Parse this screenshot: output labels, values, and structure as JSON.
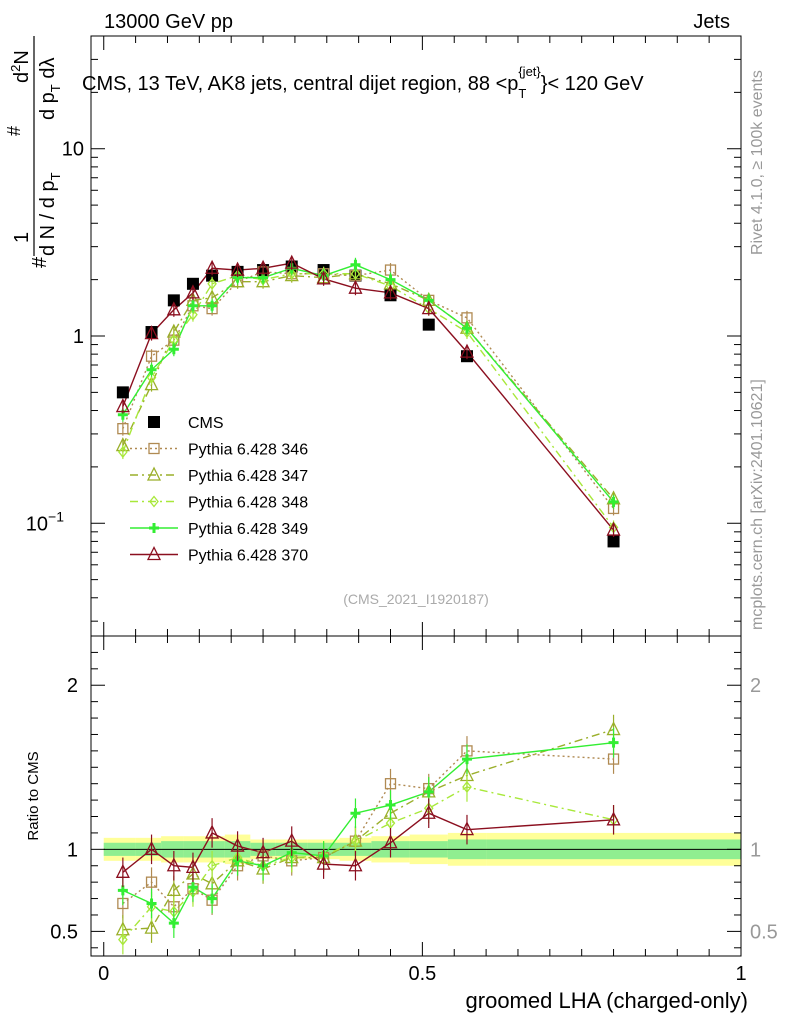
{
  "header": {
    "left": "13000 GeV pp",
    "right": "Jets"
  },
  "side_texts": {
    "rivet": "Rivet 4.1.0, ≥ 100k events",
    "site": "mcplots.cern.ch [arXiv:2401.10621]"
  },
  "colors": {
    "CMS": "#000000",
    "p346": "#b08a52",
    "p347": "#9aaf2a",
    "p348": "#a8e83a",
    "p349": "#33ee33",
    "p370": "#8b0f1f",
    "band_inner": "#90ee90",
    "band_outer": "#ffff99"
  },
  "chart_data": [
    {
      "type": "line",
      "panel": "main",
      "title": "CMS, 13 TeV, AK8 jets, central dijet region, 88 <p_T^{jet}< 120 GeV",
      "title_parts": {
        "prefix": "CMS, 13 TeV, AK8 jets, central dijet region, 88 <p",
        "sub": "T",
        "sup": "{jet}",
        "suffix": "}< 120 GeV"
      },
      "ylabel": "1/(dN/dp_T) d2N/(dp_T dλ)",
      "ylabel_parts": {
        "hash": "#",
        "one": "1",
        "denom": "d N / d p",
        "sub": "T",
        "num": "d",
        "sup": "2",
        "numtail": "N",
        "den2": "d p",
        "den2sub": "T",
        "den2tail": " dλ"
      },
      "yscale": "log",
      "ylim": [
        0.025,
        40
      ],
      "xlim": [
        -0.02,
        1.0
      ],
      "yticks": [
        {
          "value": 10,
          "label": "10"
        },
        {
          "value": 1,
          "label": "1"
        },
        {
          "value": 0.1,
          "label": "10",
          "exp": "−1"
        }
      ],
      "watermark": "(CMS_2021_I1920187)",
      "x": [
        0.03,
        0.075,
        0.11,
        0.14,
        0.17,
        0.21,
        0.25,
        0.295,
        0.345,
        0.395,
        0.45,
        0.51,
        0.57,
        0.8
      ],
      "series": [
        {
          "name": "CMS",
          "key": "CMS",
          "marker": "square-filled",
          "line": "none",
          "values": [
            0.5,
            1.05,
            1.55,
            1.9,
            2.1,
            2.2,
            2.25,
            2.35,
            2.25,
            2.1,
            1.65,
            1.15,
            0.78,
            0.08
          ]
        },
        {
          "name": "Pythia 6.428 346",
          "key": "p346",
          "marker": "square-open",
          "line": "dotted",
          "values": [
            0.32,
            0.78,
            0.95,
            1.45,
            1.4,
            1.95,
            2.2,
            2.15,
            2.15,
            2.1,
            2.25,
            1.55,
            1.25,
            0.12
          ]
        },
        {
          "name": "Pythia 6.428 347",
          "key": "p347",
          "marker": "triangle-open",
          "line": "dashdot",
          "values": [
            0.26,
            0.55,
            1.05,
            1.55,
            1.6,
            1.95,
            1.95,
            2.1,
            2.05,
            2.15,
            1.9,
            1.55,
            1.1,
            0.135
          ]
        },
        {
          "name": "Pythia 6.428 348",
          "key": "p348",
          "marker": "diamond",
          "line": "dashdot",
          "values": [
            0.24,
            0.6,
            0.95,
            1.3,
            1.9,
            2.1,
            2.0,
            2.15,
            2.15,
            2.15,
            1.85,
            1.4,
            1.05,
            0.095
          ]
        },
        {
          "name": "Pythia 6.428 349",
          "key": "p349",
          "marker": "plus",
          "line": "solid",
          "values": [
            0.38,
            0.66,
            0.85,
            1.45,
            1.45,
            2.05,
            2.05,
            2.3,
            2.1,
            2.4,
            2.0,
            1.55,
            1.1,
            0.13
          ]
        },
        {
          "name": "Pythia 6.428 370",
          "key": "p370",
          "marker": "triangle-open",
          "line": "solid",
          "values": [
            0.42,
            1.03,
            1.38,
            1.7,
            2.3,
            2.25,
            2.3,
            2.45,
            2.02,
            1.8,
            1.7,
            1.4,
            0.82,
            0.092
          ]
        }
      ]
    },
    {
      "type": "line",
      "panel": "ratio",
      "ylabel": "Ratio to CMS",
      "xlabel": "groomed LHA (charged-only)",
      "ylim": [
        0.35,
        2.3
      ],
      "xlim": [
        -0.02,
        1.0
      ],
      "yticks": [
        {
          "value": 0.5,
          "label": "0.5"
        },
        {
          "value": 1,
          "label": "1"
        },
        {
          "value": 2,
          "label": "2"
        }
      ],
      "xticks": [
        {
          "value": 0,
          "label": "0"
        },
        {
          "value": 0.5,
          "label": "0.5"
        },
        {
          "value": 1,
          "label": "1"
        }
      ],
      "band_bins": [
        0,
        0.05,
        0.09,
        0.125,
        0.155,
        0.19,
        0.23,
        0.27,
        0.32,
        0.37,
        0.42,
        0.48,
        0.54,
        0.6,
        1.0
      ],
      "band_inner": [
        0.04,
        0.04,
        0.05,
        0.05,
        0.05,
        0.05,
        0.04,
        0.04,
        0.04,
        0.04,
        0.05,
        0.05,
        0.06,
        0.06
      ],
      "band_outer": [
        0.07,
        0.07,
        0.08,
        0.08,
        0.08,
        0.09,
        0.06,
        0.06,
        0.06,
        0.07,
        0.08,
        0.09,
        0.1,
        0.1
      ],
      "x": [
        0.03,
        0.075,
        0.11,
        0.14,
        0.17,
        0.21,
        0.25,
        0.295,
        0.345,
        0.395,
        0.45,
        0.51,
        0.57,
        0.8
      ],
      "series": [
        {
          "name": "Pythia 6.428 346",
          "key": "p346",
          "marker": "square-open",
          "line": "dotted",
          "values": [
            0.67,
            0.8,
            0.65,
            0.76,
            0.69,
            0.9,
            0.96,
            0.93,
            0.95,
            1.05,
            1.4,
            1.37,
            1.6,
            1.55
          ]
        },
        {
          "name": "Pythia 6.428 347",
          "key": "p347",
          "marker": "triangle-open",
          "line": "dashdot",
          "values": [
            0.51,
            0.52,
            0.75,
            0.85,
            0.79,
            0.93,
            0.88,
            0.95,
            0.95,
            1.05,
            1.22,
            1.35,
            1.45,
            1.73
          ]
        },
        {
          "name": "Pythia 6.428 348",
          "key": "p348",
          "marker": "diamond",
          "line": "dashdot",
          "values": [
            0.45,
            0.65,
            0.62,
            0.74,
            0.9,
            0.95,
            0.9,
            0.95,
            0.96,
            1.05,
            1.16,
            1.25,
            1.38,
            1.18
          ]
        },
        {
          "name": "Pythia 6.428 349",
          "key": "p349",
          "marker": "plus",
          "line": "solid",
          "values": [
            0.75,
            0.67,
            0.55,
            0.77,
            0.7,
            0.93,
            0.9,
            0.98,
            0.96,
            1.22,
            1.27,
            1.35,
            1.55,
            1.65
          ]
        },
        {
          "name": "Pythia 6.428 370",
          "key": "p370",
          "marker": "triangle-open",
          "line": "solid",
          "values": [
            0.86,
            1.0,
            0.9,
            0.89,
            1.1,
            1.02,
            0.98,
            1.05,
            0.91,
            0.9,
            1.04,
            1.22,
            1.12,
            1.18
          ]
        }
      ]
    }
  ]
}
